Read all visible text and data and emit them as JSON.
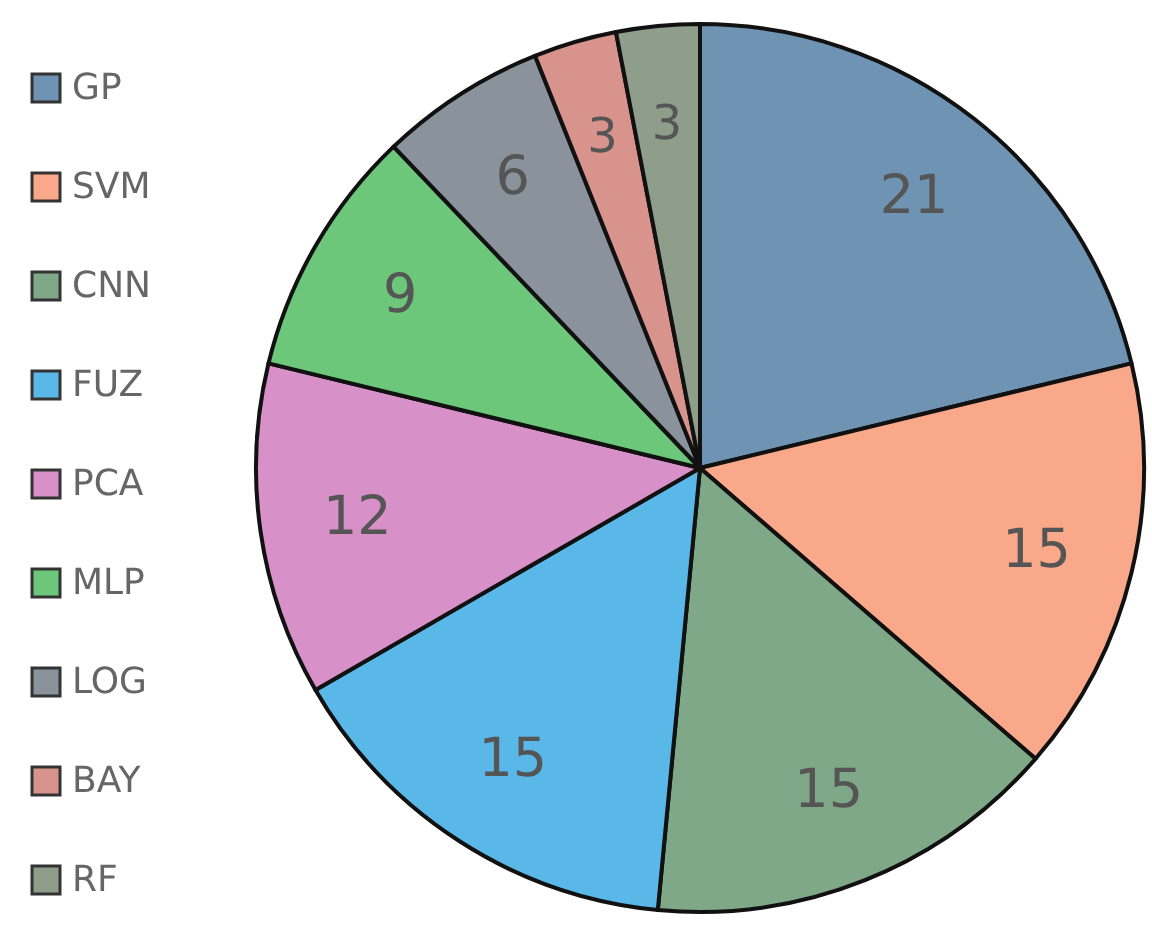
{
  "chart_data": {
    "type": "pie",
    "categories": [
      "GP",
      "SVM",
      "CNN",
      "FUZ",
      "PCA",
      "MLP",
      "LOG",
      "BAY",
      "RF"
    ],
    "values": [
      21,
      15,
      15,
      15,
      12,
      9,
      6,
      3,
      3
    ],
    "colors": [
      "#6f93b3",
      "#f9a88a",
      "#7fa888",
      "#5ab8e8",
      "#d890c8",
      "#6cc77a",
      "#8a939c",
      "#d8948c",
      "#8e9e8a"
    ],
    "data_labels": true,
    "legend": "left"
  }
}
